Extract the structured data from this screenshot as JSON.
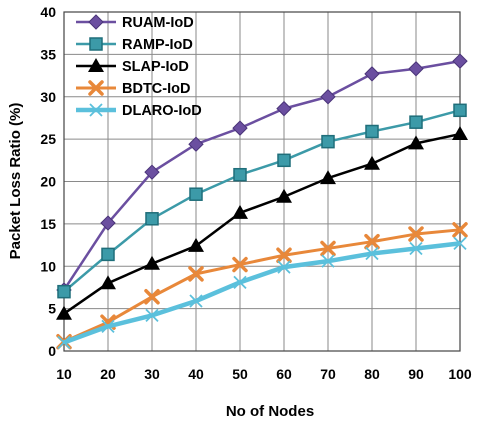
{
  "chart_data": {
    "type": "line",
    "xlabel": "No of Nodes",
    "ylabel": "Packet Loss Ratio (%)",
    "x": [
      10,
      20,
      30,
      40,
      50,
      60,
      70,
      80,
      90,
      100
    ],
    "ylim": [
      0,
      40
    ],
    "yticks": [
      0,
      5,
      10,
      15,
      20,
      25,
      30,
      35,
      40
    ],
    "grid": "vertical and horizontal",
    "legend_position": "top-left",
    "series": [
      {
        "name": "RUAM-IoD",
        "marker": "diamond",
        "color": "#6b4fa0",
        "values": [
          7.2,
          15.1,
          21.1,
          24.4,
          26.3,
          28.6,
          30.0,
          32.7,
          33.3,
          34.2
        ]
      },
      {
        "name": "RAMP-IoD",
        "marker": "square",
        "color": "#3c9aa8",
        "values": [
          7.0,
          11.4,
          15.6,
          18.5,
          20.8,
          22.5,
          24.7,
          25.9,
          27.0,
          28.4
        ]
      },
      {
        "name": "SLAP-IoD",
        "marker": "triangle",
        "color": "#000000",
        "values": [
          4.4,
          8.0,
          10.3,
          12.4,
          16.3,
          18.2,
          20.4,
          22.1,
          24.5,
          25.6
        ]
      },
      {
        "name": "BDTC-IoD",
        "marker": "x-thick",
        "color": "#e8883a",
        "values": [
          1.1,
          3.4,
          6.4,
          9.1,
          10.2,
          11.3,
          12.1,
          12.9,
          13.8,
          14.3
        ]
      },
      {
        "name": "DLARO-IoD",
        "marker": "x-thin",
        "color": "#5bc0dc",
        "values": [
          1.0,
          2.9,
          4.2,
          5.9,
          8.1,
          9.9,
          10.6,
          11.5,
          12.1,
          12.7
        ]
      }
    ]
  }
}
